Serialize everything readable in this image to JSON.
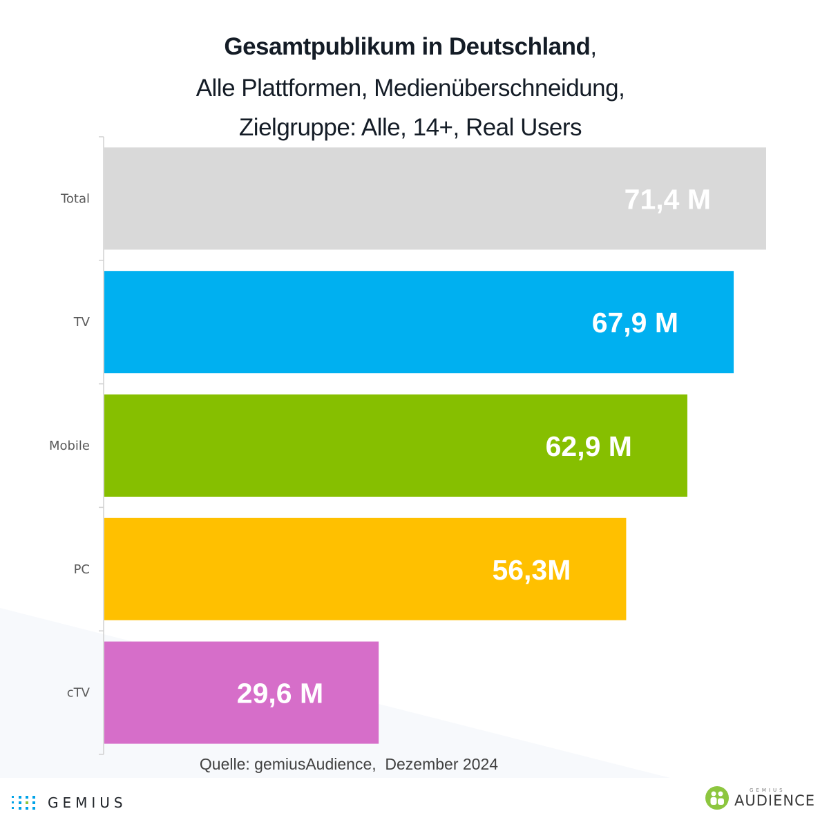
{
  "title": {
    "line1_bold": "Gesamtpublikum in Deutschland",
    "line1_suffix": ",",
    "line2": "Alle Plattformen, Medienüberschneidung,",
    "line3": "Zielgruppe: Alle, 14+, Real Users"
  },
  "chart_data": {
    "type": "bar",
    "orientation": "horizontal",
    "title": "Gesamtpublikum in Deutschland, Alle Plattformen, Medienüberschneidung, Zielgruppe: Alle, 14+, Real Users",
    "xlabel": "",
    "ylabel": "",
    "unit": "Millionen",
    "categories": [
      "Total",
      "TV",
      "Mobile",
      "PC",
      "cTV"
    ],
    "values": [
      71.4,
      67.9,
      62.9,
      56.3,
      29.6
    ],
    "data_labels": [
      "71,4 M",
      "67,9 M",
      "62,9 M",
      "56,3M",
      "29,6 M"
    ],
    "colors": [
      "#d9d9d9",
      "#00b0f0",
      "#86bf00",
      "#ffc000",
      "#d66ec9"
    ],
    "xlim": [
      0,
      71.4
    ],
    "grid": false,
    "legend": "none"
  },
  "source": "Quelle: gemiusAudience,  Dezember 2024",
  "logos": {
    "gemius": "GEMIUS",
    "audience_small": "GEMIUS",
    "audience_big": "AUDIENCE"
  },
  "colors": {
    "title": "#141c26",
    "axis_label": "#595959",
    "bar_label": "#ffffff",
    "background_shape": "#f7f9fc",
    "gemius_dots": "#00a3e8",
    "gemius_dot_accent": "#8dc63f",
    "audience_green": "#8dc63f"
  }
}
